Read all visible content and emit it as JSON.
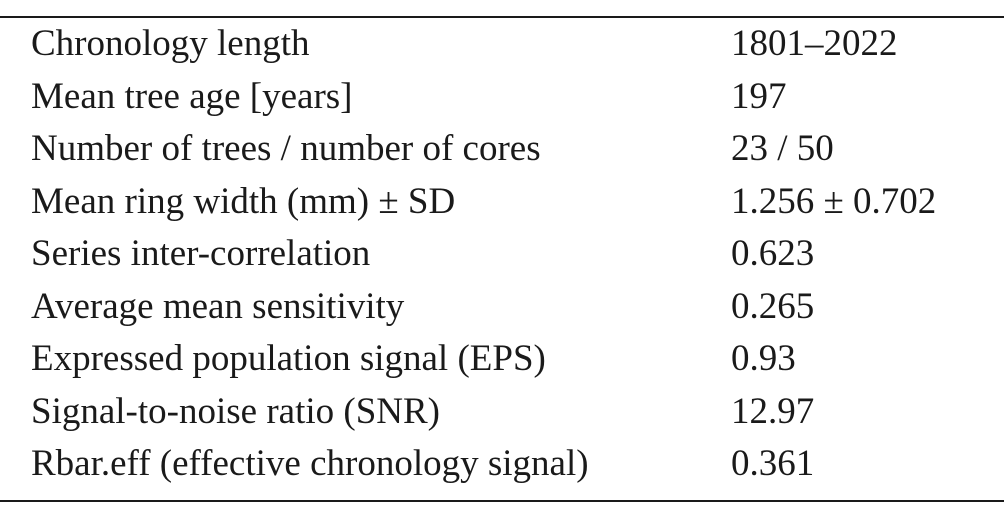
{
  "table": {
    "rows": [
      {
        "label": "Chronology length",
        "value": "1801–2022"
      },
      {
        "label": "Mean tree age [years]",
        "value": "197"
      },
      {
        "label": "Number of trees / number of cores",
        "value": "23 / 50"
      },
      {
        "label": "Mean ring width (mm) ± SD",
        "value": "1.256 ± 0.702"
      },
      {
        "label": "Series inter-correlation",
        "value": "0.623"
      },
      {
        "label": "Average mean sensitivity",
        "value": "0.265"
      },
      {
        "label": "Expressed population signal (EPS)",
        "value": "0.93"
      },
      {
        "label": "Signal-to-noise ratio (SNR)",
        "value": "12.97"
      },
      {
        "label": "Rbar.eff (effective chronology signal)",
        "value": "0.361"
      }
    ]
  }
}
